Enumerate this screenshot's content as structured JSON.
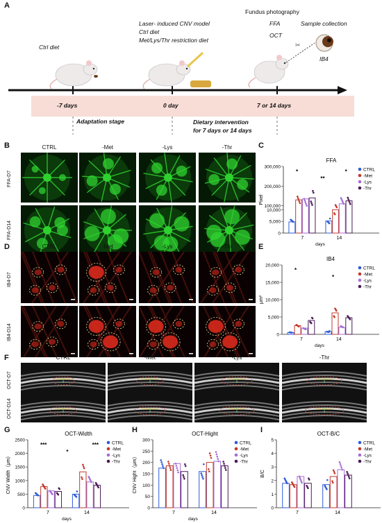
{
  "panel_letters": {
    "a": "A",
    "b": "B",
    "c": "C",
    "d": "D",
    "e": "E",
    "f": "F",
    "g": "G",
    "h": "H",
    "i": "I"
  },
  "timeline": {
    "ctrl_diet": "Ctrl diet",
    "model_line1": "Laser- induced CNV model",
    "model_line2": "Ctrl diet",
    "model_line3": "Met/Lys/Thr restriction diet",
    "fundus": "Fundus photography",
    "ffa": "FFA",
    "oct": "OCT",
    "sample": "Sample collection",
    "ib4": "IB4",
    "t1": "-7 days",
    "t2": "0 day",
    "t3": "7 or 14 days",
    "stage1": "Adaptation stage",
    "stage2_line1": "Dietary intervention",
    "stage2_line2": "for 7 days or 14 days"
  },
  "columns": [
    "CTRL",
    "-Met",
    "-Lys",
    "-Thr"
  ],
  "rows_b": [
    "FFA-D7",
    "FFA-D14"
  ],
  "rows_d": [
    "IB4-D7",
    "IB4-D14"
  ],
  "rows_f": [
    "OCT-D7",
    "OCT-D14"
  ],
  "colors": {
    "CTRL": "#2e5bd8",
    "-Met": "#c0392b",
    "-Lys": "#a56cd6",
    "-Thr": "#4a1a55",
    "ffa_green": "#2fd12f",
    "ib4_red": "#d92a1c",
    "timeline_band": "#f8dcd6"
  },
  "chart_data": [
    {
      "id": "C",
      "type": "bar",
      "title": "FFA",
      "xlabel": "days",
      "ylabel": "Pixel",
      "categories": [
        "7",
        "14"
      ],
      "yticks": [
        "0",
        "5,000",
        "10,000",
        "100,000",
        "200,000",
        "300,000"
      ],
      "ylim": [
        0,
        300000
      ],
      "axis_break": [
        10000,
        100000
      ],
      "legend": [
        "CTRL",
        "-Met",
        "-Lys",
        "-Thr"
      ],
      "series": [
        {
          "name": "CTRL",
          "values": [
            4800,
            5200
          ]
        },
        {
          "name": "-Met",
          "values": [
            130000,
            80000
          ]
        },
        {
          "name": "-Lys",
          "values": [
            135000,
            110000
          ]
        },
        {
          "name": "-Thr",
          "values": [
            140000,
            125000
          ]
        }
      ],
      "significance": [
        "*",
        "**",
        "*"
      ]
    },
    {
      "id": "E",
      "type": "bar",
      "title": "IB4",
      "xlabel": "days",
      "ylabel": "μm²",
      "categories": [
        "7",
        "14"
      ],
      "yticks": [
        "0",
        "5,000",
        "10,000",
        "15,000",
        "20,000"
      ],
      "ylim": [
        0,
        20000
      ],
      "legend": [
        "CTRL",
        "-Met",
        "-Lys",
        "-Thr"
      ],
      "series": [
        {
          "name": "CTRL",
          "values": [
            500,
            800
          ]
        },
        {
          "name": "-Met",
          "values": [
            2500,
            6200
          ]
        },
        {
          "name": "-Lys",
          "values": [
            1800,
            2000
          ]
        },
        {
          "name": "-Thr",
          "values": [
            4000,
            4800
          ]
        }
      ],
      "significance": [
        "*",
        "*"
      ]
    },
    {
      "id": "G",
      "type": "bar",
      "title": "OCT-Width",
      "xlabel": "days",
      "ylabel": "CNV Width（μm）",
      "categories": [
        "7",
        "14"
      ],
      "yticks": [
        "0",
        "500",
        "1000",
        "1500",
        "2000",
        "2500"
      ],
      "ylim": [
        0,
        2500
      ],
      "legend": [
        "CTRL",
        "-Met",
        "-Lys",
        "-Thr"
      ],
      "series": [
        {
          "name": "CTRL",
          "values": [
            450,
            500
          ]
        },
        {
          "name": "-Met",
          "values": [
            780,
            1320
          ]
        },
        {
          "name": "-Lys",
          "values": [
            620,
            950
          ]
        },
        {
          "name": "-Thr",
          "values": [
            600,
            830
          ]
        }
      ],
      "significance": [
        "***",
        "*",
        "***"
      ]
    },
    {
      "id": "H",
      "type": "bar",
      "title": "OCT-Hight",
      "xlabel": "days",
      "ylabel": "CNV Hight（μm）",
      "categories": [
        "7",
        "14"
      ],
      "yticks": [
        "0",
        "50",
        "100",
        "150",
        "200",
        "250",
        "300"
      ],
      "ylim": [
        0,
        300
      ],
      "legend": [
        "CTRL",
        "-Met",
        "-Lys",
        "-Thr"
      ],
      "series": [
        {
          "name": "CTRL",
          "values": [
            175,
            160
          ]
        },
        {
          "name": "-Met",
          "values": [
            185,
            200
          ]
        },
        {
          "name": "-Lys",
          "values": [
            195,
            205
          ]
        },
        {
          "name": "-Thr",
          "values": [
            160,
            185
          ]
        }
      ]
    },
    {
      "id": "I",
      "type": "bar",
      "title": "OCT-B/C",
      "xlabel": "",
      "ylabel": "B/C",
      "categories": [
        "7",
        "14"
      ],
      "yticks": [
        "0",
        "1",
        "2",
        "3",
        "4",
        "5"
      ],
      "ylim": [
        0,
        5
      ],
      "legend": [
        "CTRL",
        "-Met",
        "-Lys",
        "-Thr"
      ],
      "series": [
        {
          "name": "CTRL",
          "values": [
            1.8,
            1.7
          ]
        },
        {
          "name": "-Met",
          "values": [
            1.7,
            2.3
          ]
        },
        {
          "name": "-Lys",
          "values": [
            2.3,
            2.8
          ]
        },
        {
          "name": "-Thr",
          "values": [
            1.8,
            2.4
          ]
        }
      ]
    }
  ]
}
